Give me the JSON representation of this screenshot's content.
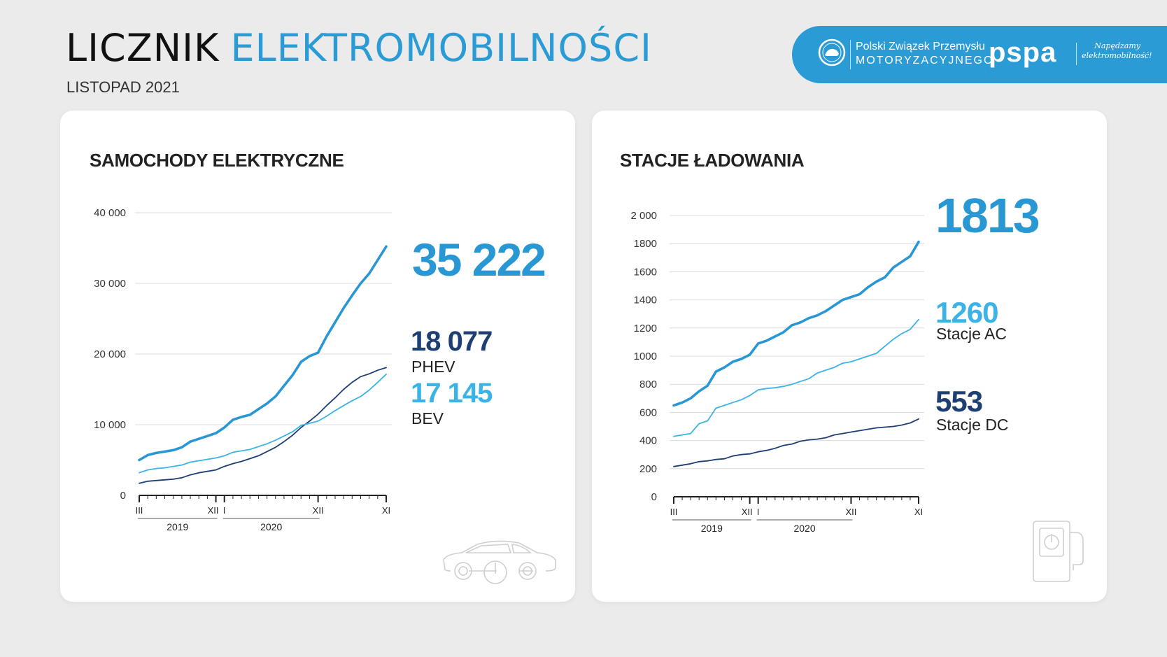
{
  "header": {
    "title_part1": "LICZNIK",
    "title_part2": "ELEKTROMOBILNOŚCI",
    "subtitle": "LISTOPAD 2021"
  },
  "banner": {
    "org_line1": "Polski Związek Przemysłu",
    "org_line2": "MOTORYZACYJNEGO",
    "brand": "pspa",
    "slogan_line1": "Napędzamy",
    "slogan_line2": "elektromobilność!"
  },
  "colors": {
    "accent": "#2b9bd6",
    "light_blue": "#3bb3e6",
    "navy": "#1d3f73",
    "total_blue": "#2997d4"
  },
  "icons": [
    "car-icon",
    "charging-station-icon",
    "power-icon",
    "seal-logo-icon"
  ],
  "cars": {
    "title": "SAMOCHODY ELEKTRYCZNE",
    "total": "35 222",
    "phev_value": "18 077",
    "phev_label": "PHEV",
    "bev_value": "17 145",
    "bev_label": "BEV"
  },
  "stations": {
    "title": "STACJE ŁADOWANIA",
    "total": "1813",
    "ac_value": "1260",
    "ac_label": "Stacje AC",
    "dc_value": "553",
    "dc_label": "Stacje DC"
  },
  "chart_data": [
    {
      "type": "line",
      "title": "SAMOCHODY ELEKTRYCZNE",
      "x_start": "2019-03",
      "x_end": "2021-11",
      "x_tick_labels": [
        "III",
        "XII",
        "I",
        "XII",
        "XI"
      ],
      "year_labels": [
        "2019",
        "2020"
      ],
      "y_ticks": [
        "0",
        "10 000",
        "20 000",
        "30 000",
        "40 000"
      ],
      "ylim": [
        0,
        40000
      ],
      "grid": true,
      "series": [
        {
          "name": "total",
          "color": "#2997d4",
          "values": [
            5000,
            5700,
            6000,
            6200,
            6400,
            6800,
            7600,
            8000,
            8400,
            8800,
            9600,
            10700,
            11100,
            11400,
            12200,
            13000,
            14000,
            15500,
            17000,
            18900,
            19700,
            20200,
            22500,
            24500,
            26500,
            28300,
            30000,
            31400,
            33300,
            35222
          ]
        },
        {
          "name": "PHEV",
          "color": "#1d3f73",
          "values": [
            1700,
            2000,
            2100,
            2200,
            2300,
            2500,
            2900,
            3200,
            3400,
            3600,
            4100,
            4500,
            4800,
            5200,
            5600,
            6200,
            6800,
            7600,
            8500,
            9600,
            10500,
            11500,
            12700,
            13800,
            15000,
            16000,
            16800,
            17200,
            17700,
            18077
          ]
        },
        {
          "name": "BEV",
          "color": "#3bb3e6",
          "values": [
            3200,
            3600,
            3800,
            3900,
            4100,
            4300,
            4700,
            4900,
            5100,
            5300,
            5600,
            6100,
            6300,
            6500,
            6900,
            7300,
            7800,
            8400,
            9000,
            9900,
            10200,
            10500,
            11200,
            12000,
            12700,
            13400,
            14000,
            14900,
            16000,
            17145
          ]
        }
      ]
    },
    {
      "type": "line",
      "title": "STACJE ŁADOWANIA",
      "x_start": "2019-03",
      "x_end": "2021-11",
      "x_tick_labels": [
        "III",
        "XII",
        "I",
        "XII",
        "XI"
      ],
      "year_labels": [
        "2019",
        "2020"
      ],
      "y_ticks": [
        "0",
        "200",
        "400",
        "600",
        "800",
        "1000",
        "1200",
        "1400",
        "1600",
        "1800",
        "2 000"
      ],
      "ylim": [
        0,
        2000
      ],
      "grid": true,
      "series": [
        {
          "name": "total",
          "color": "#2997d4",
          "values": [
            650,
            670,
            700,
            750,
            790,
            890,
            920,
            960,
            980,
            1010,
            1090,
            1110,
            1140,
            1170,
            1220,
            1240,
            1270,
            1290,
            1320,
            1360,
            1400,
            1420,
            1440,
            1490,
            1530,
            1560,
            1630,
            1670,
            1710,
            1813
          ]
        },
        {
          "name": "Stacje AC",
          "color": "#3bb3e6",
          "values": [
            430,
            440,
            450,
            520,
            540,
            630,
            650,
            670,
            690,
            720,
            760,
            770,
            775,
            785,
            800,
            820,
            840,
            880,
            900,
            920,
            950,
            960,
            980,
            1000,
            1020,
            1070,
            1120,
            1160,
            1190,
            1260
          ]
        },
        {
          "name": "Stacje DC",
          "color": "#1d3f73",
          "values": [
            215,
            225,
            235,
            250,
            255,
            265,
            270,
            290,
            300,
            305,
            320,
            330,
            345,
            365,
            375,
            395,
            405,
            410,
            420,
            440,
            450,
            460,
            470,
            480,
            490,
            495,
            500,
            510,
            525,
            553
          ]
        }
      ]
    }
  ]
}
